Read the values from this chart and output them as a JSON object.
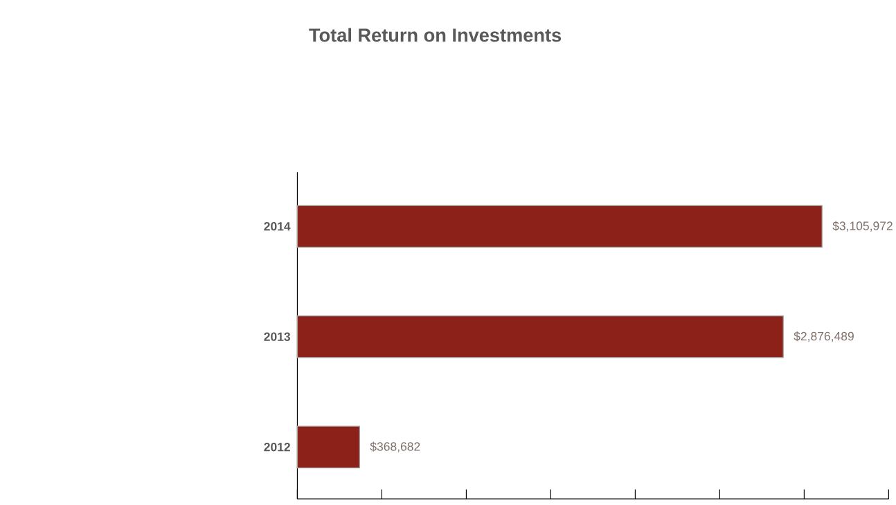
{
  "chart_data": {
    "type": "bar",
    "orientation": "horizontal",
    "title": "Total Return on Investments",
    "categories": [
      "2014",
      "2013",
      "2012"
    ],
    "values": [
      3105972,
      2876489,
      368682
    ],
    "value_labels": [
      "$3,105,972",
      "$2,876,489",
      "$368,682"
    ],
    "color": "#8b2119",
    "xlim": [
      0,
      3500000
    ],
    "xticks": [
      {
        "value": 0,
        "label": null
      },
      {
        "value": 500000,
        "label": null
      },
      {
        "value": 1000000,
        "label": null
      },
      {
        "value": 1500000,
        "label": null
      },
      {
        "value": 2000000,
        "label": null
      },
      {
        "value": 2500000,
        "label": null
      },
      {
        "value": 3000000,
        "label": null
      },
      {
        "value": 3500000,
        "label": null
      }
    ],
    "tick_labels": "y"
  }
}
